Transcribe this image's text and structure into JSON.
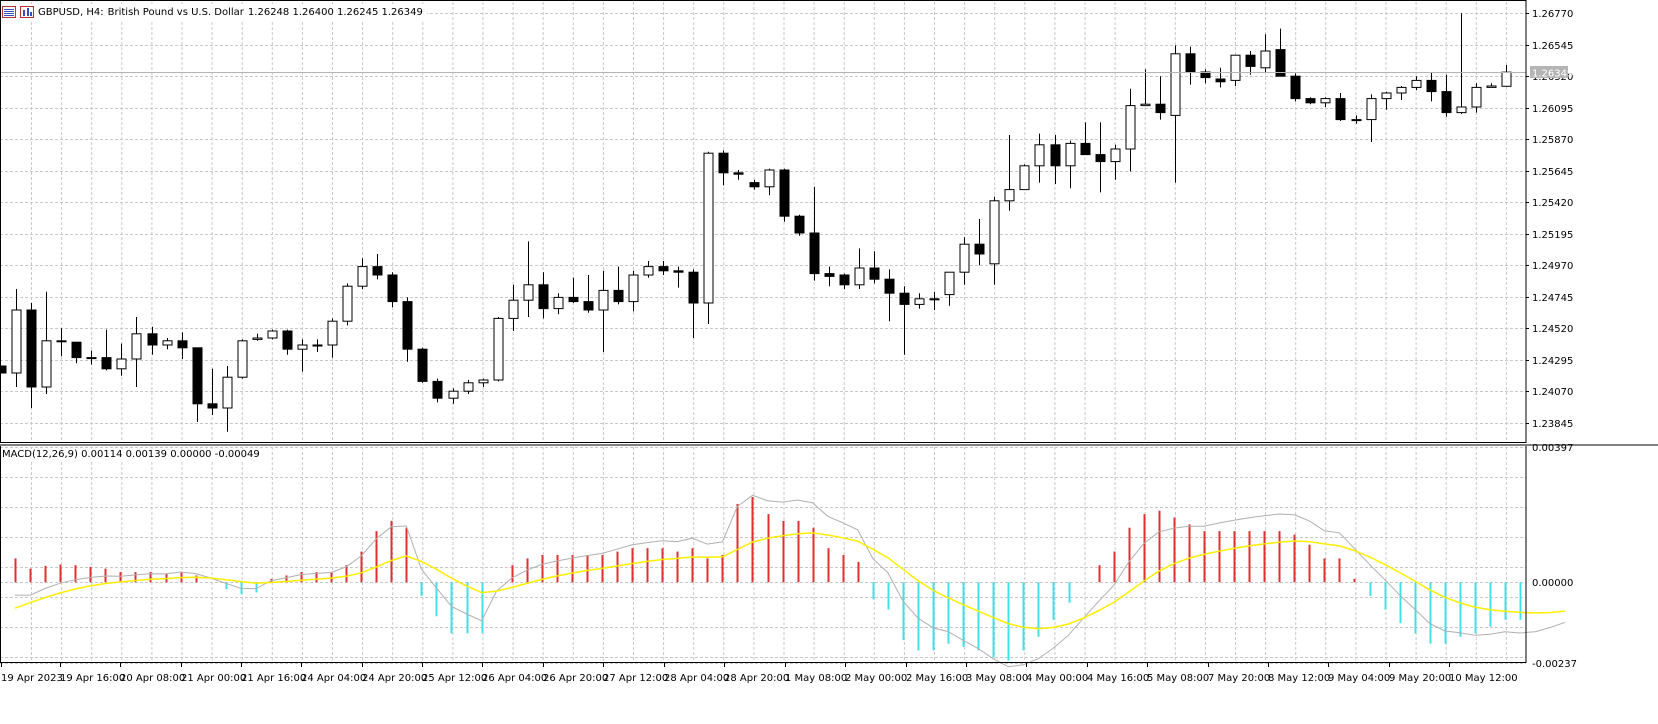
{
  "header": {
    "symbol_title": "GBPUSD, H4:",
    "description": "British Pound vs U.S. Dollar",
    "ohlc": "1.26248 1.26400 1.26245 1.26349",
    "icons": [
      "chart-window-icon",
      "bar-chart-icon"
    ]
  },
  "macd_panel": {
    "label": "MACD(12,26,9) 0.00114 0.00139 0.00000 -0.00049",
    "scale_labels": [
      "0.00397",
      "0.00000",
      "-0.00237"
    ]
  },
  "price_axis": {
    "labels": [
      "1.26770",
      "1.26545",
      "1.26320",
      "1.26095",
      "1.25870",
      "1.25645",
      "1.25420",
      "1.25195",
      "1.24970",
      "1.24745",
      "1.24520",
      "1.24295",
      "1.24070",
      "1.23845"
    ],
    "current_price": "1.26349"
  },
  "time_axis": {
    "labels": [
      "19 Apr 2023",
      "19 Apr 16:00",
      "20 Apr 08:00",
      "21 Apr 00:00",
      "21 Apr 16:00",
      "24 Apr 04:00",
      "24 Apr 20:00",
      "25 Apr 12:00",
      "26 Apr 04:00",
      "26 Apr 20:00",
      "27 Apr 12:00",
      "28 Apr 04:00",
      "28 Apr 20:00",
      "1 May 08:00",
      "2 May 00:00",
      "2 May 16:00",
      "3 May 08:00",
      "4 May 00:00",
      "4 May 16:00",
      "5 May 08:00",
      "7 May 20:00",
      "8 May 12:00",
      "9 May 04:00",
      "9 May 20:00",
      "10 May 12:00"
    ]
  },
  "colors": {
    "background": "#ffffff",
    "grid": "#c8c8c8",
    "candle": "#000000",
    "histogram_positive": "#e03030",
    "histogram_negative": "#40e0e8",
    "signal_line": "#ffee00",
    "macd_line": "#b0b0b0",
    "price_tag_bg": "#b4b4b4"
  },
  "chart_data": [
    {
      "type": "candlestick",
      "title": "GBPUSD, H4: British Pound vs U.S. Dollar",
      "ylim": [
        1.237,
        1.2685
      ],
      "candles": [
        {
          "o": 1.2425,
          "h": 1.2425,
          "l": 1.242,
          "c": 1.242
        },
        {
          "o": 1.242,
          "h": 1.248,
          "l": 1.241,
          "c": 1.2465
        },
        {
          "o": 1.2465,
          "h": 1.247,
          "l": 1.2395,
          "c": 1.241
        },
        {
          "o": 1.241,
          "h": 1.2478,
          "l": 1.2405,
          "c": 1.2443
        },
        {
          "o": 1.2443,
          "h": 1.2452,
          "l": 1.2432,
          "c": 1.2443
        },
        {
          "o": 1.2442,
          "h": 1.2442,
          "l": 1.2427,
          "c": 1.2431
        },
        {
          "o": 1.2431,
          "h": 1.2436,
          "l": 1.2426,
          "c": 1.2431
        },
        {
          "o": 1.2431,
          "h": 1.2451,
          "l": 1.2422,
          "c": 1.2423
        },
        {
          "o": 1.2423,
          "h": 1.2441,
          "l": 1.2418,
          "c": 1.243
        },
        {
          "o": 1.243,
          "h": 1.246,
          "l": 1.241,
          "c": 1.2448
        },
        {
          "o": 1.2448,
          "h": 1.2453,
          "l": 1.2433,
          "c": 1.244
        },
        {
          "o": 1.244,
          "h": 1.2445,
          "l": 1.2437,
          "c": 1.2443
        },
        {
          "o": 1.2443,
          "h": 1.2449,
          "l": 1.243,
          "c": 1.2438
        },
        {
          "o": 1.2438,
          "h": 1.2438,
          "l": 1.2385,
          "c": 1.2398
        },
        {
          "o": 1.2398,
          "h": 1.2423,
          "l": 1.239,
          "c": 1.2395
        },
        {
          "o": 1.2395,
          "h": 1.2425,
          "l": 1.2378,
          "c": 1.2417
        },
        {
          "o": 1.2417,
          "h": 1.2444,
          "l": 1.2416,
          "c": 1.2443
        },
        {
          "o": 1.2444,
          "h": 1.2448,
          "l": 1.2443,
          "c": 1.2445
        },
        {
          "o": 1.2445,
          "h": 1.2451,
          "l": 1.2444,
          "c": 1.245
        },
        {
          "o": 1.245,
          "h": 1.2451,
          "l": 1.2433,
          "c": 1.2437
        },
        {
          "o": 1.2437,
          "h": 1.2444,
          "l": 1.2421,
          "c": 1.244
        },
        {
          "o": 1.244,
          "h": 1.2444,
          "l": 1.2435,
          "c": 1.244
        },
        {
          "o": 1.244,
          "h": 1.2459,
          "l": 1.2431,
          "c": 1.2457
        },
        {
          "o": 1.2457,
          "h": 1.2484,
          "l": 1.2454,
          "c": 1.2482
        },
        {
          "o": 1.2482,
          "h": 1.2502,
          "l": 1.248,
          "c": 1.2496
        },
        {
          "o": 1.2496,
          "h": 1.2505,
          "l": 1.2487,
          "c": 1.249
        },
        {
          "o": 1.249,
          "h": 1.2492,
          "l": 1.2467,
          "c": 1.2471
        },
        {
          "o": 1.2471,
          "h": 1.2474,
          "l": 1.2428,
          "c": 1.2437
        },
        {
          "o": 1.2437,
          "h": 1.2438,
          "l": 1.2413,
          "c": 1.2414
        },
        {
          "o": 1.2414,
          "h": 1.2416,
          "l": 1.2399,
          "c": 1.2402
        },
        {
          "o": 1.2402,
          "h": 1.2409,
          "l": 1.2398,
          "c": 1.2407
        },
        {
          "o": 1.2407,
          "h": 1.2415,
          "l": 1.2405,
          "c": 1.2413
        },
        {
          "o": 1.2413,
          "h": 1.2416,
          "l": 1.241,
          "c": 1.2415
        },
        {
          "o": 1.2415,
          "h": 1.246,
          "l": 1.2414,
          "c": 1.2459
        },
        {
          "o": 1.2459,
          "h": 1.2483,
          "l": 1.245,
          "c": 1.2472
        },
        {
          "o": 1.2472,
          "h": 1.2514,
          "l": 1.246,
          "c": 1.2483
        },
        {
          "o": 1.2483,
          "h": 1.2492,
          "l": 1.2459,
          "c": 1.2466
        },
        {
          "o": 1.2466,
          "h": 1.2477,
          "l": 1.2462,
          "c": 1.2474
        },
        {
          "o": 1.2474,
          "h": 1.2488,
          "l": 1.247,
          "c": 1.2471
        },
        {
          "o": 1.2471,
          "h": 1.249,
          "l": 1.2463,
          "c": 1.2465
        },
        {
          "o": 1.2465,
          "h": 1.2493,
          "l": 1.2435,
          "c": 1.2479
        },
        {
          "o": 1.2479,
          "h": 1.2496,
          "l": 1.2469,
          "c": 1.2471
        },
        {
          "o": 1.2471,
          "h": 1.2493,
          "l": 1.2464,
          "c": 1.249
        },
        {
          "o": 1.249,
          "h": 1.25,
          "l": 1.2488,
          "c": 1.2496
        },
        {
          "o": 1.2496,
          "h": 1.25,
          "l": 1.249,
          "c": 1.2493
        },
        {
          "o": 1.2493,
          "h": 1.2496,
          "l": 1.2481,
          "c": 1.2492
        },
        {
          "o": 1.2492,
          "h": 1.2494,
          "l": 1.2445,
          "c": 1.247
        },
        {
          "o": 1.247,
          "h": 1.2578,
          "l": 1.2455,
          "c": 1.2577
        },
        {
          "o": 1.2577,
          "h": 1.2579,
          "l": 1.2554,
          "c": 1.2563
        },
        {
          "o": 1.2563,
          "h": 1.2565,
          "l": 1.2558,
          "c": 1.2562
        },
        {
          "o": 1.2556,
          "h": 1.2558,
          "l": 1.2551,
          "c": 1.2553
        },
        {
          "o": 1.2553,
          "h": 1.2566,
          "l": 1.2547,
          "c": 1.2565
        },
        {
          "o": 1.2565,
          "h": 1.2566,
          "l": 1.2528,
          "c": 1.2532
        },
        {
          "o": 1.2532,
          "h": 1.2533,
          "l": 1.2518,
          "c": 1.252
        },
        {
          "o": 1.252,
          "h": 1.2553,
          "l": 1.2486,
          "c": 1.2491
        },
        {
          "o": 1.2491,
          "h": 1.2496,
          "l": 1.2482,
          "c": 1.2489
        },
        {
          "o": 1.249,
          "h": 1.2491,
          "l": 1.248,
          "c": 1.2483
        },
        {
          "o": 1.2483,
          "h": 1.2509,
          "l": 1.248,
          "c": 1.2495
        },
        {
          "o": 1.2495,
          "h": 1.2507,
          "l": 1.2484,
          "c": 1.2487
        },
        {
          "o": 1.2487,
          "h": 1.2494,
          "l": 1.2457,
          "c": 1.2477
        },
        {
          "o": 1.2477,
          "h": 1.2482,
          "l": 1.2433,
          "c": 1.2469
        },
        {
          "o": 1.2469,
          "h": 1.2477,
          "l": 1.2466,
          "c": 1.2473
        },
        {
          "o": 1.2473,
          "h": 1.2478,
          "l": 1.2465,
          "c": 1.2473
        },
        {
          "o": 1.2476,
          "h": 1.2492,
          "l": 1.2468,
          "c": 1.2492
        },
        {
          "o": 1.2492,
          "h": 1.2517,
          "l": 1.2483,
          "c": 1.2512
        },
        {
          "o": 1.2512,
          "h": 1.253,
          "l": 1.2497,
          "c": 1.2505
        },
        {
          "o": 1.2498,
          "h": 1.2546,
          "l": 1.2483,
          "c": 1.2543
        },
        {
          "o": 1.2543,
          "h": 1.259,
          "l": 1.2536,
          "c": 1.2551
        },
        {
          "o": 1.2551,
          "h": 1.2569,
          "l": 1.2551,
          "c": 1.2568
        },
        {
          "o": 1.2568,
          "h": 1.2591,
          "l": 1.2556,
          "c": 1.2583
        },
        {
          "o": 1.2583,
          "h": 1.259,
          "l": 1.2555,
          "c": 1.2568
        },
        {
          "o": 1.2568,
          "h": 1.2586,
          "l": 1.2552,
          "c": 1.2584
        },
        {
          "o": 1.2584,
          "h": 1.2599,
          "l": 1.2579,
          "c": 1.2576
        },
        {
          "o": 1.2576,
          "h": 1.2599,
          "l": 1.2549,
          "c": 1.2571
        },
        {
          "o": 1.2571,
          "h": 1.2583,
          "l": 1.2558,
          "c": 1.258
        },
        {
          "o": 1.258,
          "h": 1.2623,
          "l": 1.2564,
          "c": 1.2611
        },
        {
          "o": 1.2611,
          "h": 1.2637,
          "l": 1.2611,
          "c": 1.2612
        },
        {
          "o": 1.2612,
          "h": 1.2632,
          "l": 1.2601,
          "c": 1.2606
        },
        {
          "o": 1.2604,
          "h": 1.2654,
          "l": 1.2556,
          "c": 1.2648
        },
        {
          "o": 1.2648,
          "h": 1.2653,
          "l": 1.2626,
          "c": 1.2635
        },
        {
          "o": 1.2635,
          "h": 1.2637,
          "l": 1.2627,
          "c": 1.2631
        },
        {
          "o": 1.263,
          "h": 1.2638,
          "l": 1.2624,
          "c": 1.2628
        },
        {
          "o": 1.2629,
          "h": 1.2647,
          "l": 1.2625,
          "c": 1.2647
        },
        {
          "o": 1.2647,
          "h": 1.265,
          "l": 1.2633,
          "c": 1.2639
        },
        {
          "o": 1.2638,
          "h": 1.2662,
          "l": 1.2635,
          "c": 1.265
        },
        {
          "o": 1.2651,
          "h": 1.2666,
          "l": 1.2633,
          "c": 1.2632
        },
        {
          "o": 1.2632,
          "h": 1.2634,
          "l": 1.2614,
          "c": 1.2616
        },
        {
          "o": 1.2616,
          "h": 1.2617,
          "l": 1.2612,
          "c": 1.2613
        },
        {
          "o": 1.2613,
          "h": 1.2617,
          "l": 1.261,
          "c": 1.2616
        },
        {
          "o": 1.2616,
          "h": 1.262,
          "l": 1.26,
          "c": 1.2601
        },
        {
          "o": 1.2601,
          "h": 1.2604,
          "l": 1.2598,
          "c": 1.2601
        },
        {
          "o": 1.2601,
          "h": 1.2619,
          "l": 1.2585,
          "c": 1.2616
        },
        {
          "o": 1.2616,
          "h": 1.2621,
          "l": 1.2608,
          "c": 1.262
        },
        {
          "o": 1.262,
          "h": 1.2625,
          "l": 1.2615,
          "c": 1.2624
        },
        {
          "o": 1.2624,
          "h": 1.2632,
          "l": 1.2622,
          "c": 1.2629
        },
        {
          "o": 1.2629,
          "h": 1.2635,
          "l": 1.2614,
          "c": 1.2621
        },
        {
          "o": 1.2621,
          "h": 1.2633,
          "l": 1.2603,
          "c": 1.2606
        },
        {
          "o": 1.2606,
          "h": 1.2677,
          "l": 1.2605,
          "c": 1.261
        },
        {
          "o": 1.261,
          "h": 1.2627,
          "l": 1.2606,
          "c": 1.2624
        },
        {
          "o": 1.2624,
          "h": 1.2627,
          "l": 1.2624,
          "c": 1.2625
        },
        {
          "o": 1.26248,
          "h": 1.264,
          "l": 1.26245,
          "c": 1.26349
        }
      ]
    },
    {
      "type": "bar",
      "title": "MACD(12,26,9) 0.00114 0.00139 0.00000 -0.00049",
      "ylim": [
        -0.00237,
        0.00397
      ],
      "series": [
        {
          "name": "",
          "values": [
            0.0007,
            0.0004,
            0.00048,
            0.00052,
            0.0005,
            0.00045,
            0.0004,
            0.0003,
            0.0003,
            0.0003,
            0.00025,
            0.0003,
            0.0002,
            0.0,
            -0.0002,
            -0.00035,
            -0.0003,
            0.0001,
            0.0002,
            0.0003,
            0.0003,
            0.0003,
            0.0005,
            0.0009,
            0.0015,
            0.0018,
            0.0016,
            -0.0004,
            -0.001,
            -0.0015,
            -0.0015,
            -0.0015,
            0.0,
            0.0005,
            0.0007,
            0.0008,
            0.0008,
            0.0008,
            0.0008,
            0.0008,
            0.0009,
            0.001,
            0.001,
            0.001,
            0.0009,
            0.001,
            0.0007,
            0.0008,
            0.0023,
            0.0025,
            0.002,
            0.0018,
            0.0018,
            0.0016,
            0.001,
            0.0008,
            0.0006,
            -0.0005,
            -0.0008,
            -0.0017,
            -0.002,
            -0.002,
            -0.0018,
            -0.0019,
            -0.002,
            -0.0022,
            -0.0023,
            -0.002,
            -0.0016,
            -0.0011,
            -0.0006,
            0.0,
            0.0005,
            0.0009,
            0.0016,
            0.002,
            0.0021,
            0.0019,
            0.0017,
            0.0015,
            0.0015,
            0.0015,
            0.0015,
            0.0015,
            0.0015,
            0.0014,
            0.0011,
            0.0007,
            0.0007,
            0.0001,
            -0.0004,
            -0.0008,
            -0.0012,
            -0.0015,
            -0.0018,
            -0.0018,
            -0.0016,
            -0.0015,
            -0.0013,
            -0.0011,
            -0.0011,
            -0.001,
            -0.0008,
            -0.0006
          ]
        }
      ],
      "lines": [
        {
          "name": "",
          "color": "#b0b0b0",
          "values_description": "macd line"
        },
        {
          "name": "",
          "color": "#ffee00",
          "values_description": "signal line"
        }
      ]
    }
  ]
}
